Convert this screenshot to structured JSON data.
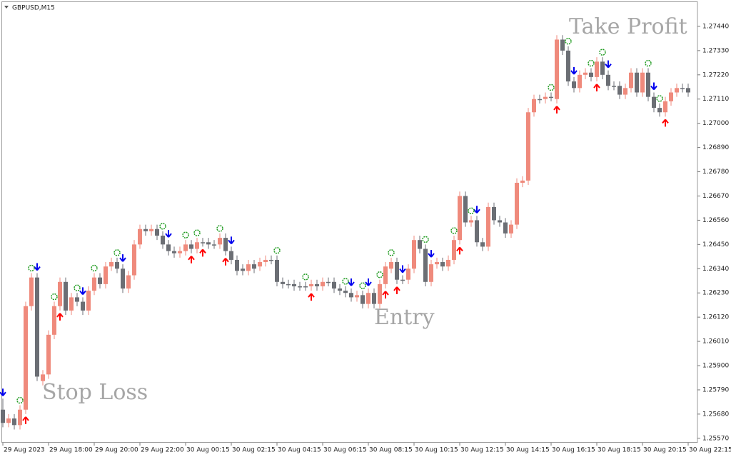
{
  "chart_data": {
    "type": "candlestick",
    "title": "GBPUSD,M15",
    "annotations": [
      "Stop Loss",
      "Entry",
      "Take Profit"
    ],
    "categories": [
      "29 Aug 2023",
      null,
      null,
      null,
      null,
      null,
      null,
      null,
      "29 Aug 18:00",
      null,
      null,
      null,
      null,
      null,
      null,
      null,
      "29 Aug 20:00",
      null,
      null,
      null,
      null,
      null,
      null,
      null,
      "29 Aug 22:00",
      null,
      null,
      null,
      null,
      null,
      null,
      null,
      "30 Aug 00:15",
      null,
      null,
      null,
      null,
      null,
      null,
      null,
      "30 Aug 02:15",
      null,
      null,
      null,
      null,
      null,
      null,
      null,
      "30 Aug 04:15",
      null,
      null,
      null,
      null,
      null,
      null,
      null,
      "30 Aug 06:15",
      null,
      null,
      null,
      null,
      null,
      null,
      null,
      "30 Aug 08:15",
      null,
      null,
      null,
      null,
      null,
      null,
      null,
      "30 Aug 10:15",
      null,
      null,
      null,
      null,
      null,
      null,
      null,
      "30 Aug 12:15",
      null,
      null,
      null,
      null,
      null,
      null,
      null,
      "30 Aug 14:15",
      null,
      null,
      null,
      null,
      null,
      null,
      null,
      "30 Aug 16:15",
      null,
      null,
      null,
      null,
      null,
      null,
      null,
      "30 Aug 18:15",
      null,
      null,
      null,
      null,
      null,
      null,
      null,
      "30 Aug 20:15",
      null,
      null,
      null,
      null,
      null,
      null,
      null,
      "30 Aug 22:15"
    ],
    "open": [
      1.257,
      1.2564,
      1.2566,
      1.2563,
      1.257,
      1.2617,
      1.263,
      1.2583,
      1.2586,
      1.2604,
      1.2617,
      1.2628,
      1.2615,
      1.2621,
      1.2619,
      1.2615,
      1.2624,
      1.263,
      1.2627,
      1.2635,
      1.2637,
      1.2634,
      1.2625,
      1.2631,
      1.2645,
      1.2652,
      1.2651,
      1.2652,
      1.2649,
      1.2645,
      1.2642,
      1.2641,
      1.2642,
      1.2645,
      1.2643,
      1.2646,
      1.2646,
      1.2645,
      1.2645,
      1.2648,
      1.2642,
      1.2638,
      1.2634,
      1.2633,
      1.2636,
      1.2635,
      1.2637,
      1.2638,
      1.2638,
      1.2628,
      1.2627,
      1.2627,
      1.2626,
      1.2626,
      1.2626,
      1.2627,
      1.2626,
      1.2628,
      1.2628,
      1.2625,
      1.2624,
      1.2623,
      1.2621,
      1.2622,
      1.2618,
      1.2623,
      1.2618,
      1.2627,
      1.2634,
      1.2637,
      1.2629,
      1.2629,
      1.2634,
      1.2647,
      1.2643,
      1.2628,
      1.2636,
      1.2637,
      1.2635,
      1.2638,
      1.2647,
      1.2667,
      1.2655,
      1.2656,
      1.2646,
      1.2644,
      1.2662,
      1.2656,
      1.2655,
      1.265,
      1.2654,
      1.2673,
      1.2674,
      1.2705,
      1.2711,
      1.2711,
      1.2712,
      1.2711,
      1.2738,
      1.2733,
      1.2719,
      1.2716,
      1.2722,
      1.2723,
      1.2721,
      1.2728,
      1.2722,
      1.2717,
      1.2717,
      1.2713,
      1.2716,
      1.2723,
      1.2714,
      1.2723,
      1.2712,
      1.2707,
      1.2705,
      1.271,
      1.2714,
      1.2716,
      1.2716
    ],
    "high": [
      1.2575,
      1.2568,
      1.2568,
      1.2572,
      1.2619,
      1.2632,
      1.2632,
      1.2588,
      1.2606,
      1.2619,
      1.263,
      1.263,
      1.2623,
      1.2623,
      1.2621,
      1.2626,
      1.2632,
      1.2632,
      1.2637,
      1.2639,
      1.2639,
      1.2636,
      1.2633,
      1.2647,
      1.2654,
      1.2654,
      1.2654,
      1.2654,
      1.2651,
      1.2647,
      1.2644,
      1.2644,
      1.2647,
      1.2647,
      1.2648,
      1.2648,
      1.2648,
      1.2647,
      1.265,
      1.265,
      1.2644,
      1.264,
      1.2636,
      1.2638,
      1.2638,
      1.2639,
      1.264,
      1.264,
      1.264,
      1.263,
      1.2629,
      1.2629,
      1.2628,
      1.2628,
      1.2629,
      1.2629,
      1.263,
      1.263,
      1.263,
      1.2627,
      1.2626,
      1.2625,
      1.2624,
      1.2624,
      1.2625,
      1.2625,
      1.2629,
      1.2637,
      1.2639,
      1.2639,
      1.2631,
      1.2636,
      1.2649,
      1.2649,
      1.2645,
      1.2638,
      1.2639,
      1.2639,
      1.264,
      1.2649,
      1.2669,
      1.2669,
      1.2658,
      1.2658,
      1.2648,
      1.2664,
      1.2664,
      1.2658,
      1.2657,
      1.2656,
      1.2675,
      1.2676,
      1.2707,
      1.2713,
      1.2713,
      1.2714,
      1.2714,
      1.274,
      1.274,
      1.2735,
      1.2721,
      1.2724,
      1.2725,
      1.2725,
      1.273,
      1.273,
      1.2724,
      1.2719,
      1.2719,
      1.2718,
      1.2725,
      1.2725,
      1.2725,
      1.2725,
      1.2714,
      1.2709,
      1.2712,
      1.2716,
      1.2718,
      1.2718,
      1.2718
    ],
    "low": [
      1.2562,
      1.2562,
      1.2561,
      1.2561,
      1.2568,
      1.2615,
      1.2583,
      1.2581,
      1.2584,
      1.2602,
      1.2615,
      1.2613,
      1.2613,
      1.2617,
      1.2613,
      1.2613,
      1.2622,
      1.2625,
      1.2625,
      1.2633,
      1.2632,
      1.2623,
      1.2623,
      1.2629,
      1.2643,
      1.2649,
      1.2649,
      1.2647,
      1.2643,
      1.264,
      1.2639,
      1.2639,
      1.264,
      1.2641,
      1.2641,
      1.2644,
      1.2643,
      1.2643,
      1.2643,
      1.264,
      1.2636,
      1.2631,
      1.2631,
      1.2631,
      1.2632,
      1.2633,
      1.2635,
      1.2636,
      1.2626,
      1.2625,
      1.2625,
      1.2624,
      1.2624,
      1.2624,
      1.2624,
      1.2624,
      1.2624,
      1.2626,
      1.2623,
      1.2622,
      1.2621,
      1.2619,
      1.2619,
      1.2616,
      1.2616,
      1.2616,
      1.2616,
      1.2625,
      1.2632,
      1.2627,
      1.2627,
      1.2627,
      1.2632,
      1.2641,
      1.2626,
      1.2626,
      1.2634,
      1.2633,
      1.2633,
      1.2636,
      1.2645,
      1.2653,
      1.2653,
      1.2644,
      1.2642,
      1.2642,
      1.2654,
      1.2653,
      1.2648,
      1.2648,
      1.2652,
      1.2671,
      1.2672,
      1.2703,
      1.2709,
      1.2709,
      1.271,
      1.2709,
      1.2731,
      1.2717,
      1.2714,
      1.2714,
      1.272,
      1.2719,
      1.2719,
      1.272,
      1.2715,
      1.2715,
      1.2711,
      1.2711,
      1.2714,
      1.2712,
      1.2712,
      1.271,
      1.2705,
      1.2703,
      1.2703,
      1.2708,
      1.2712,
      1.2714,
      1.2712
    ],
    "close": [
      1.2564,
      1.2566,
      1.2563,
      1.257,
      1.2617,
      1.263,
      1.2585,
      1.2586,
      1.2604,
      1.2617,
      1.2628,
      1.2615,
      1.2621,
      1.2619,
      1.2615,
      1.2624,
      1.263,
      1.2627,
      1.2635,
      1.2637,
      1.2634,
      1.2625,
      1.2631,
      1.2645,
      1.2652,
      1.2651,
      1.2652,
      1.2649,
      1.2645,
      1.2642,
      1.2641,
      1.2642,
      1.2645,
      1.2643,
      1.2646,
      1.2646,
      1.2645,
      1.2645,
      1.2648,
      1.2642,
      1.2638,
      1.2633,
      1.2633,
      1.2636,
      1.2634,
      1.2637,
      1.2638,
      1.2638,
      1.2628,
      1.2627,
      1.2627,
      1.2626,
      1.2626,
      1.2626,
      1.2627,
      1.2626,
      1.2628,
      1.2628,
      1.2625,
      1.2624,
      1.2623,
      1.2621,
      1.2622,
      1.2618,
      1.2623,
      1.2618,
      1.2627,
      1.2635,
      1.2637,
      1.2629,
      1.2629,
      1.2634,
      1.2647,
      1.2643,
      1.2628,
      1.2636,
      1.2637,
      1.2635,
      1.2638,
      1.2647,
      1.2667,
      1.2655,
      1.2656,
      1.2646,
      1.2644,
      1.2662,
      1.2656,
      1.2655,
      1.265,
      1.2654,
      1.2673,
      1.2674,
      1.2705,
      1.2711,
      1.2711,
      1.2712,
      1.2712,
      1.2738,
      1.2733,
      1.2719,
      1.2716,
      1.2722,
      1.2723,
      1.2721,
      1.2728,
      1.2722,
      1.2717,
      1.2717,
      1.2713,
      1.2716,
      1.2723,
      1.2714,
      1.2723,
      1.2712,
      1.2707,
      1.2705,
      1.271,
      1.2714,
      1.2716,
      1.2716,
      1.2714
    ],
    "up_color": "#ef8a7c",
    "down_color": "#6b6e74",
    "buy_arrows": [
      4,
      10,
      33,
      35,
      39,
      54,
      67,
      69,
      80,
      97,
      104,
      116
    ],
    "sell_arrows": [
      0,
      6,
      14,
      21,
      29,
      40,
      61,
      64,
      70,
      75,
      83,
      100,
      106,
      114
    ],
    "markers": [
      3,
      5,
      9,
      13,
      16,
      20,
      28,
      32,
      34,
      38,
      48,
      53,
      60,
      63,
      66,
      68,
      74,
      79,
      82,
      96,
      99,
      103,
      105,
      113,
      115
    ],
    "buy_color": "#ff0000",
    "sell_color": "#0000ee",
    "marker_color": "#1e9a1e",
    "ylim": [
      1.2555,
      1.2755
    ],
    "yticks": [
      {
        "value": 1.2557,
        "label": "1.25570"
      },
      {
        "value": 1.2568,
        "label": "1.25680"
      },
      {
        "value": 1.2579,
        "label": "1.25790"
      },
      {
        "value": 1.259,
        "label": "1.25900"
      },
      {
        "value": 1.2601,
        "label": "1.26010"
      },
      {
        "value": 1.2612,
        "label": "1.26120"
      },
      {
        "value": 1.2623,
        "label": "1.26230"
      },
      {
        "value": 1.2634,
        "label": "1.26340"
      },
      {
        "value": 1.2645,
        "label": "1.26450"
      },
      {
        "value": 1.2656,
        "label": "1.26560"
      },
      {
        "value": 1.2667,
        "label": "1.26670"
      },
      {
        "value": 1.2678,
        "label": "1.26780"
      },
      {
        "value": 1.2689,
        "label": "1.26890"
      },
      {
        "value": 1.27,
        "label": "1.27000"
      },
      {
        "value": 1.2711,
        "label": "1.27110"
      },
      {
        "value": 1.2722,
        "label": "1.27220"
      },
      {
        "value": 1.2733,
        "label": "1.27330"
      },
      {
        "value": 1.2744,
        "label": "1.27440"
      }
    ]
  }
}
